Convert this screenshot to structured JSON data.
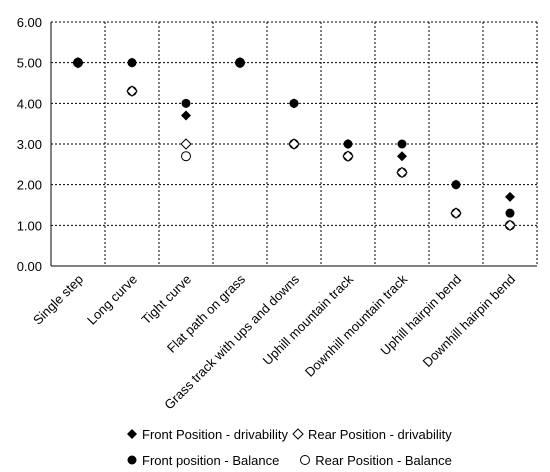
{
  "chart_data": {
    "type": "scatter",
    "categories": [
      "Single step",
      "Long curve",
      "Tight curve",
      "Flat path on grass",
      "Grass track with ups and downs",
      "Uphill mountain track",
      "Downhill mountain track",
      "Uphill hairpin bend",
      "Downhill hairpin bend"
    ],
    "ylim": [
      0,
      6
    ],
    "yticks": [
      "0.00",
      "1.00",
      "2.00",
      "3.00",
      "4.00",
      "5.00",
      "6.00"
    ],
    "grid": "dotted",
    "legend_position": "bottom",
    "series": [
      {
        "name": "Front  Position - drivability",
        "marker": "filled-diamond",
        "color": "#000000",
        "values": [
          5.0,
          5.0,
          3.7,
          5.0,
          4.0,
          3.0,
          2.7,
          2.0,
          1.7
        ]
      },
      {
        "name": "Rear Position - drivability",
        "marker": "open-diamond",
        "color": "#000000",
        "values": [
          5.0,
          4.3,
          3.0,
          5.0,
          3.0,
          2.7,
          2.3,
          1.3,
          1.0
        ]
      },
      {
        "name": "Front position - Balance",
        "marker": "filled-circle",
        "color": "#000000",
        "values": [
          5.0,
          5.0,
          4.0,
          5.0,
          4.0,
          3.0,
          3.0,
          2.0,
          1.3
        ]
      },
      {
        "name": "Rear Position - Balance",
        "marker": "open-circle",
        "color": "#000000",
        "values": [
          5.0,
          4.3,
          2.7,
          5.0,
          3.0,
          2.7,
          2.3,
          1.3,
          1.0
        ]
      }
    ]
  }
}
